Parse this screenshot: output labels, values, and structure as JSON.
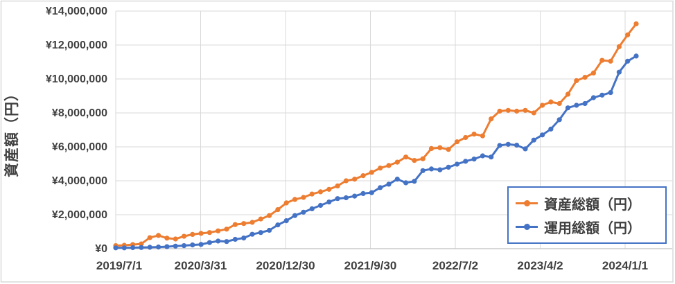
{
  "chart_data": {
    "type": "line",
    "title": "",
    "xlabel": "",
    "ylabel": "資産額（円）",
    "ylim": [
      0,
      14000000
    ],
    "grid": true,
    "legend_position": "inside-bottom-right",
    "y_tick_labels": [
      "¥0",
      "¥2,000,000",
      "¥4,000,000",
      "¥6,000,000",
      "¥8,000,000",
      "¥10,000,000",
      "¥12,000,000",
      "¥14,000,000"
    ],
    "x_tick_labels": [
      "2019/7/1",
      "2020/3/31",
      "2020/12/30",
      "2021/9/30",
      "2022/7/2",
      "2023/4/2",
      "2024/1/1"
    ],
    "series": [
      {
        "name": "資産総額（円）",
        "color": "#ED7D31",
        "values": [
          180000,
          200000,
          240000,
          280000,
          650000,
          780000,
          620000,
          570000,
          730000,
          840000,
          900000,
          950000,
          1050000,
          1150000,
          1420000,
          1480000,
          1550000,
          1750000,
          1950000,
          2300000,
          2700000,
          2900000,
          3020000,
          3220000,
          3350000,
          3500000,
          3700000,
          4000000,
          4100000,
          4300000,
          4500000,
          4750000,
          4900000,
          5100000,
          5400000,
          5200000,
          5300000,
          5900000,
          5950000,
          5850000,
          6300000,
          6550000,
          6750000,
          6650000,
          7650000,
          8100000,
          8150000,
          8100000,
          8150000,
          8000000,
          8450000,
          8650000,
          8550000,
          9100000,
          9900000,
          10100000,
          10350000,
          11100000,
          11050000,
          11900000,
          12600000,
          13250000
        ]
      },
      {
        "name": "運用総額（円）",
        "color": "#4472C4",
        "values": [
          50000,
          50000,
          60000,
          70000,
          80000,
          100000,
          120000,
          150000,
          180000,
          220000,
          250000,
          360000,
          450000,
          420000,
          550000,
          630000,
          850000,
          950000,
          1080000,
          1400000,
          1650000,
          1950000,
          2150000,
          2350000,
          2550000,
          2750000,
          2950000,
          3000000,
          3100000,
          3250000,
          3300000,
          3600000,
          3800000,
          4100000,
          3880000,
          3970000,
          4600000,
          4700000,
          4650000,
          4800000,
          4980000,
          5150000,
          5280000,
          5470000,
          5400000,
          6080000,
          6150000,
          6100000,
          5880000,
          6400000,
          6700000,
          7050000,
          7600000,
          8300000,
          8450000,
          8550000,
          8900000,
          9050000,
          9200000,
          10400000,
          11050000,
          11350000
        ]
      }
    ],
    "colors": {
      "grid": "#D9D9D9",
      "axis_line": "#BFBFBF",
      "text": "#404040",
      "legend_border": "#4472C4",
      "background": "#FFFFFF"
    }
  }
}
